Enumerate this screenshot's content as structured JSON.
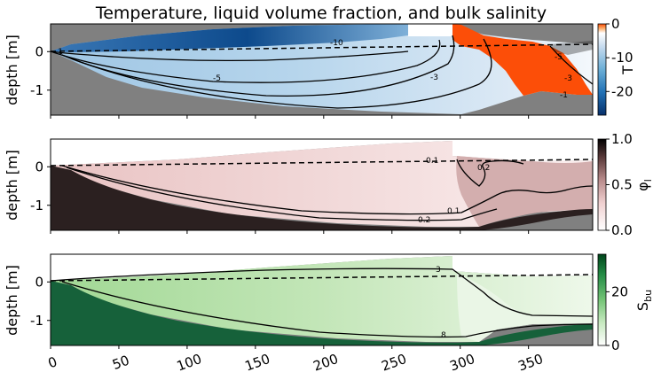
{
  "chart_data": {
    "type": "heatmap",
    "title": "Temperature, liquid volume fraction, and bulk salinity",
    "x_ticks": [
      0,
      50,
      100,
      150,
      200,
      250,
      300,
      350
    ],
    "xlim": [
      0,
      397
    ],
    "panels": [
      {
        "name": "temperature",
        "ylabel": "depth [m]",
        "ylim": [
          -1.65,
          0.72
        ],
        "y_ticks": [
          0,
          -1
        ],
        "colorbar_label": "T",
        "colorbar_ticks": [
          0,
          -10,
          -20
        ],
        "colorbar_range": [
          -27,
          0
        ],
        "colormap": [
          "#08306b",
          "#2171b5",
          "#6baed6",
          "#c6dbef",
          "#ffffff",
          "#fdae6b",
          "#fc4e08"
        ],
        "contour_labels": [
          "-1",
          "-10",
          "-5",
          "-3",
          "-5",
          "-3",
          "-1"
        ]
      },
      {
        "name": "liquid_volume_fraction",
        "ylabel": "depth [m]",
        "ylim": [
          -1.65,
          0.72
        ],
        "y_ticks": [
          0,
          -1
        ],
        "colorbar_label": "φ",
        "colorbar_subscript": "l",
        "colorbar_ticks": [
          1.0,
          0.5,
          0.0
        ],
        "colorbar_tick_labels": [
          "1.0",
          "0.5",
          "0.0"
        ],
        "colorbar_range": [
          0,
          1
        ],
        "colormap": [
          "#ffffff",
          "#f0d0d0",
          "#b98c8c",
          "#5a3a3a",
          "#000000"
        ],
        "contour_labels": [
          "0.1",
          "0.2",
          "0.1",
          "0.2"
        ]
      },
      {
        "name": "bulk_salinity",
        "ylabel": "depth [m]",
        "ylim": [
          -1.65,
          0.72
        ],
        "y_ticks": [
          0,
          -1
        ],
        "colorbar_label": "S",
        "colorbar_subscript": "bu",
        "colorbar_ticks": [
          20,
          0
        ],
        "colorbar_range": [
          0,
          34
        ],
        "colormap": [
          "#ffffff",
          "#c7e9c0",
          "#74c476",
          "#238b45",
          "#00441b"
        ],
        "contour_labels": [
          "3",
          "8"
        ]
      }
    ]
  }
}
